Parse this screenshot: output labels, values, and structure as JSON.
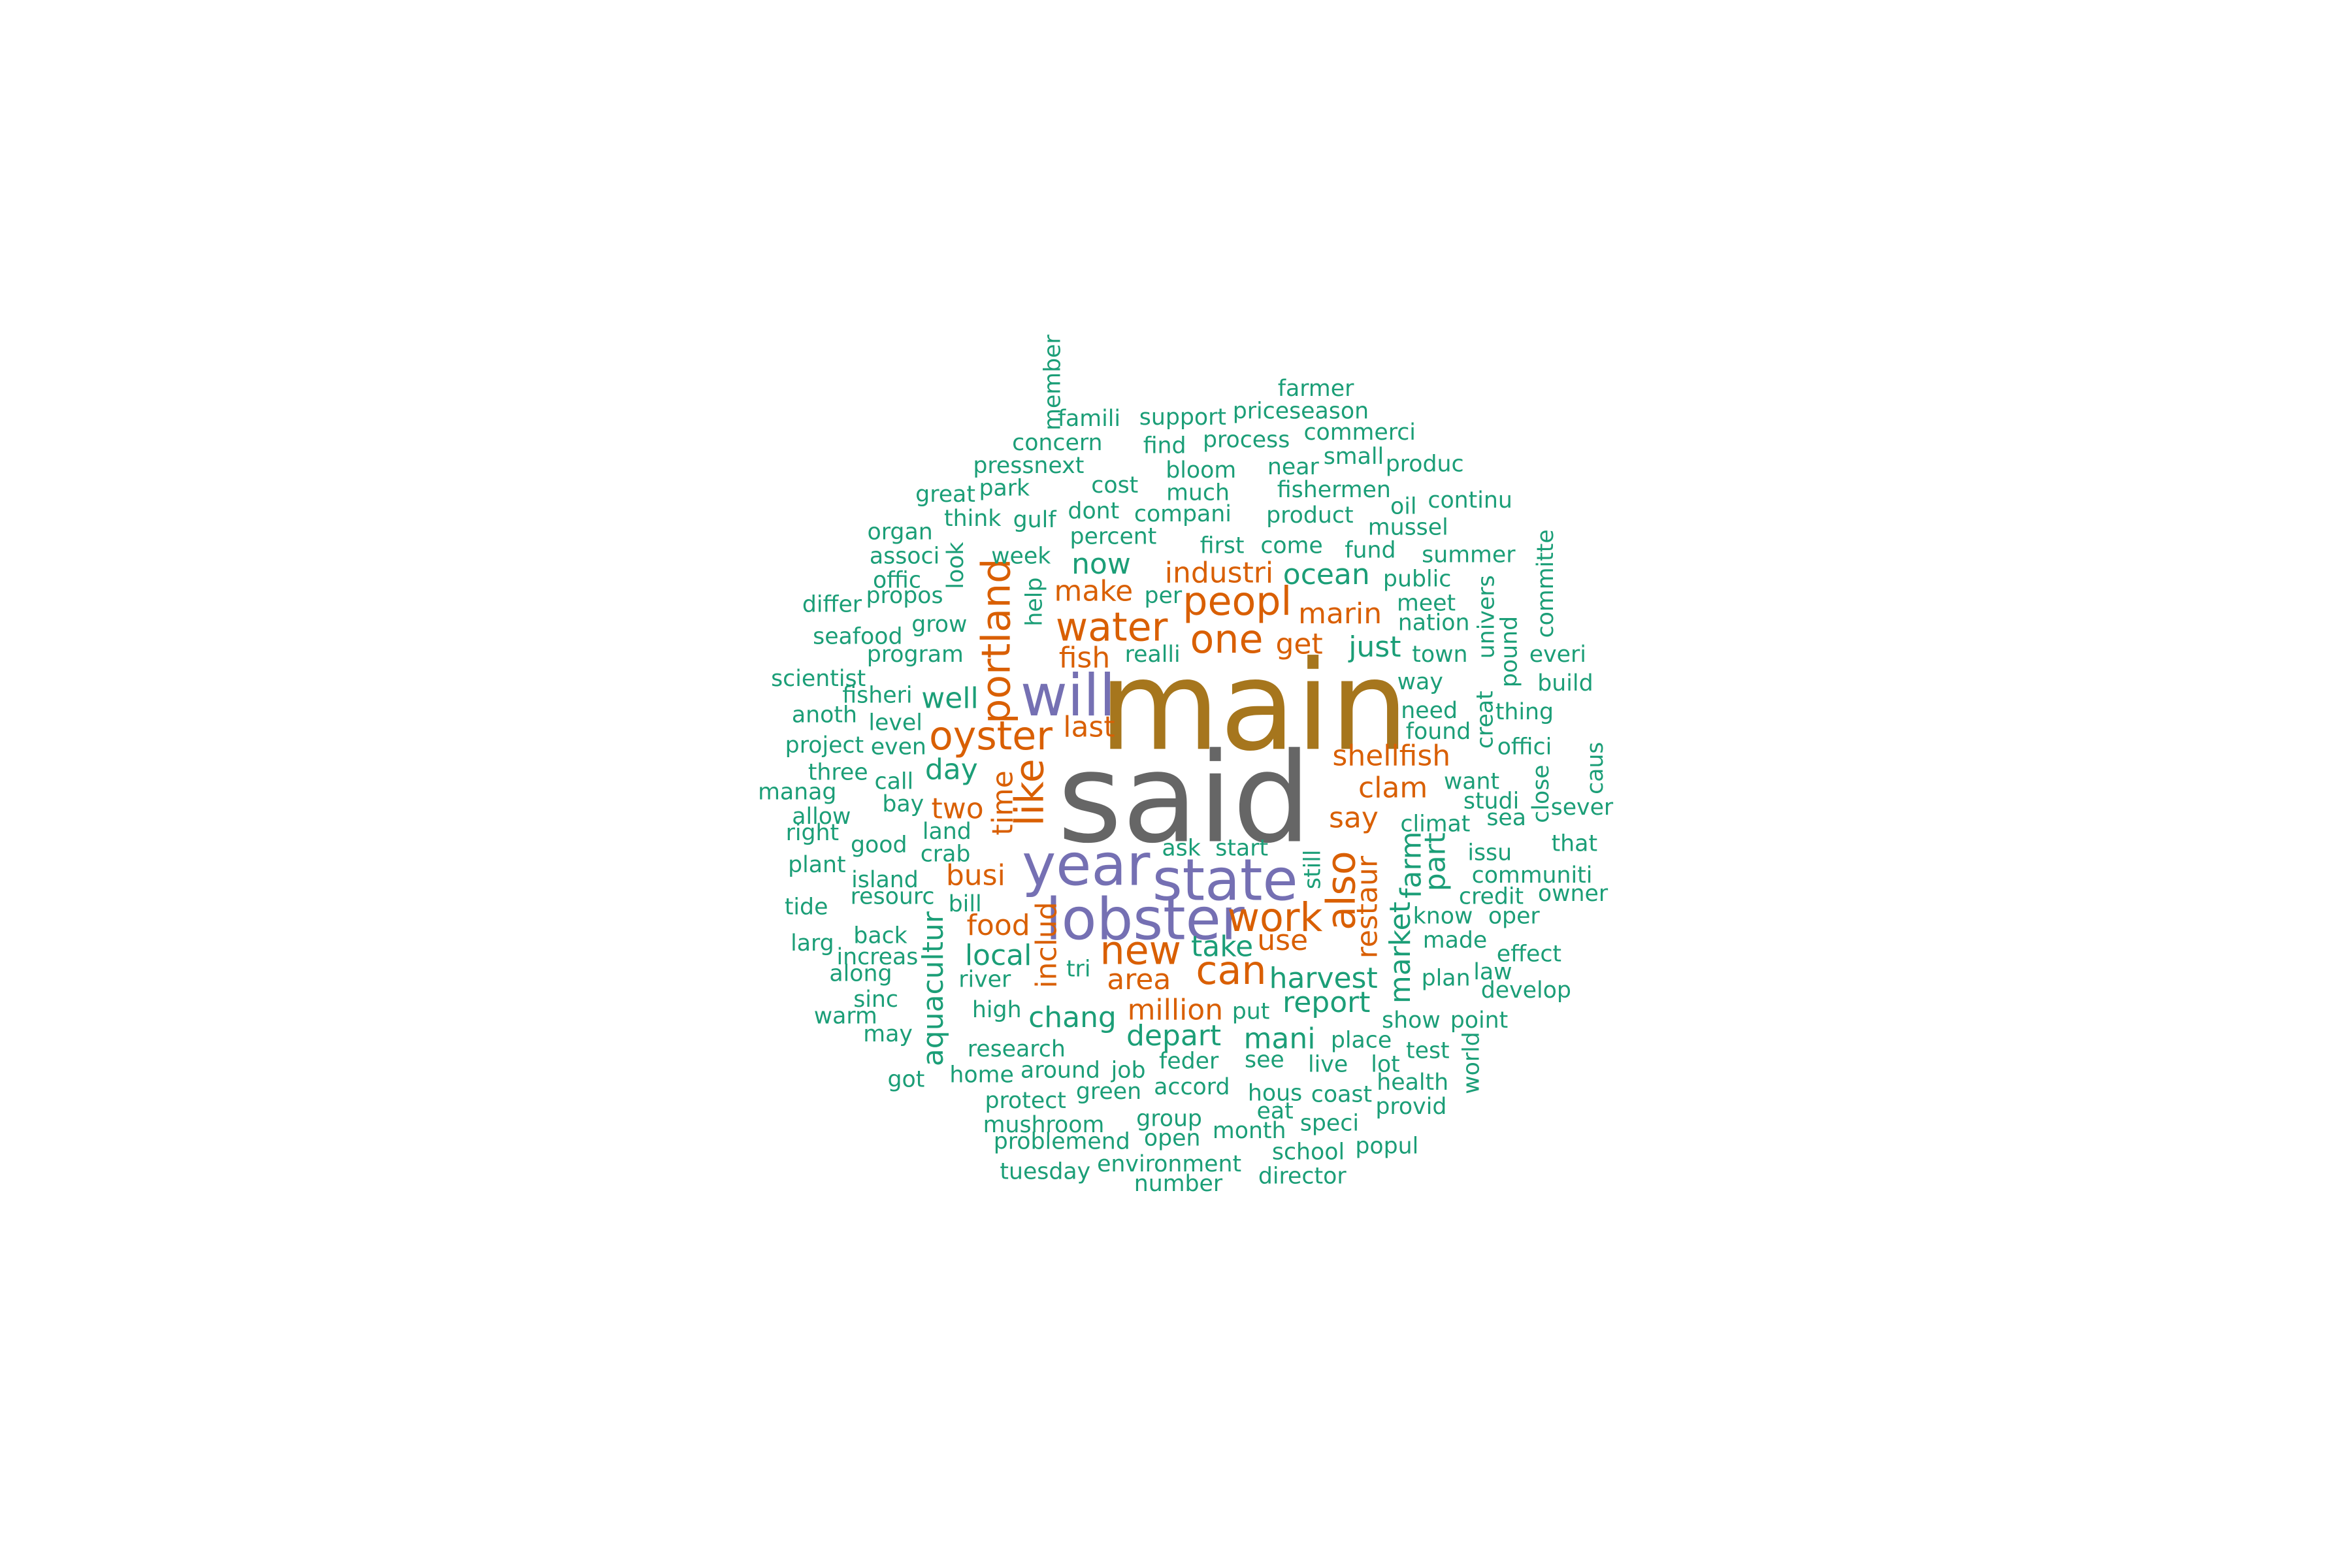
{
  "palette": {
    "teal": "#1b9e77",
    "orange": "#d95f02",
    "purple": "#7570b3",
    "gold": "#a6761d",
    "gray": "#666666"
  },
  "words": [
    {
      "text": "said",
      "tier": 1,
      "color": "gray",
      "rotate": false
    },
    {
      "text": "main",
      "tier": 1,
      "color": "gold",
      "rotate": false
    },
    {
      "text": "state",
      "tier": 2,
      "color": "purple",
      "rotate": false
    },
    {
      "text": "year",
      "tier": 2,
      "color": "purple",
      "rotate": false
    },
    {
      "text": "will",
      "tier": 2,
      "color": "purple",
      "rotate": false
    },
    {
      "text": "lobster",
      "tier": 2,
      "color": "purple",
      "rotate": false
    },
    {
      "text": "water",
      "tier": 3,
      "color": "orange",
      "rotate": false
    },
    {
      "text": "one",
      "tier": 3,
      "color": "orange",
      "rotate": false
    },
    {
      "text": "new",
      "tier": 3,
      "color": "orange",
      "rotate": false
    },
    {
      "text": "oyster",
      "tier": 3,
      "color": "orange",
      "rotate": false
    },
    {
      "text": "portland",
      "tier": 3,
      "color": "orange",
      "rotate": true
    },
    {
      "text": "peopl",
      "tier": 3,
      "color": "orange",
      "rotate": false
    },
    {
      "text": "can",
      "tier": 3,
      "color": "orange",
      "rotate": false
    },
    {
      "text": "work",
      "tier": 3,
      "color": "orange",
      "rotate": false
    },
    {
      "text": "like",
      "tier": 3,
      "color": "orange",
      "rotate": true
    },
    {
      "text": "also",
      "tier": 3,
      "color": "orange",
      "rotate": true
    },
    {
      "text": "industri",
      "tier": 4,
      "color": "orange",
      "rotate": false
    },
    {
      "text": "make",
      "tier": 4,
      "color": "orange",
      "rotate": false
    },
    {
      "text": "fish",
      "tier": 4,
      "color": "orange",
      "rotate": false
    },
    {
      "text": "get",
      "tier": 4,
      "color": "orange",
      "rotate": false
    },
    {
      "text": "shellfish",
      "tier": 4,
      "color": "orange",
      "rotate": false
    },
    {
      "text": "clam",
      "tier": 4,
      "color": "orange",
      "rotate": false
    },
    {
      "text": "say",
      "tier": 4,
      "color": "orange",
      "rotate": false
    },
    {
      "text": "time",
      "tier": 4,
      "color": "orange",
      "rotate": true
    },
    {
      "text": "two",
      "tier": 4,
      "color": "orange",
      "rotate": false
    },
    {
      "text": "busi",
      "tier": 4,
      "color": "orange",
      "rotate": false
    },
    {
      "text": "food",
      "tier": 4,
      "color": "orange",
      "rotate": false
    },
    {
      "text": "million",
      "tier": 4,
      "color": "orange",
      "rotate": false
    },
    {
      "text": "area",
      "tier": 4,
      "color": "orange",
      "rotate": false
    },
    {
      "text": "use",
      "tier": 4,
      "color": "orange",
      "rotate": false
    },
    {
      "text": "last",
      "tier": 4,
      "color": "orange",
      "rotate": false
    },
    {
      "text": "marin",
      "tier": 4,
      "color": "orange",
      "rotate": false
    },
    {
      "text": "restaur",
      "tier": 4,
      "color": "orange",
      "rotate": true
    },
    {
      "text": "includ",
      "tier": 4,
      "color": "orange",
      "rotate": true
    },
    {
      "text": "now",
      "tier": 4,
      "color": "teal",
      "rotate": false
    },
    {
      "text": "ocean",
      "tier": 4,
      "color": "teal",
      "rotate": false
    },
    {
      "text": "just",
      "tier": 4,
      "color": "teal",
      "rotate": false
    },
    {
      "text": "harvest",
      "tier": 4,
      "color": "teal",
      "rotate": false
    },
    {
      "text": "report",
      "tier": 4,
      "color": "teal",
      "rotate": false
    },
    {
      "text": "depart",
      "tier": 4,
      "color": "teal",
      "rotate": false
    },
    {
      "text": "chang",
      "tier": 4,
      "color": "teal",
      "rotate": false
    },
    {
      "text": "mani",
      "tier": 4,
      "color": "teal",
      "rotate": false
    },
    {
      "text": "day",
      "tier": 4,
      "color": "teal",
      "rotate": false
    },
    {
      "text": "well",
      "tier": 4,
      "color": "teal",
      "rotate": false
    },
    {
      "text": "local",
      "tier": 4,
      "color": "teal",
      "rotate": false
    },
    {
      "text": "take",
      "tier": 4,
      "color": "teal",
      "rotate": false
    },
    {
      "text": "market",
      "tier": 4,
      "color": "teal",
      "rotate": true
    },
    {
      "text": "farm",
      "tier": 4,
      "color": "teal",
      "rotate": true
    },
    {
      "text": "part",
      "tier": 4,
      "color": "teal",
      "rotate": true
    },
    {
      "text": "aquacultur",
      "tier": 4,
      "color": "teal",
      "rotate": true
    },
    {
      "text": "farmer",
      "tier": 5,
      "color": "teal",
      "rotate": false
    },
    {
      "text": "member",
      "tier": 5,
      "color": "teal",
      "rotate": true
    },
    {
      "text": "famili",
      "tier": 5,
      "color": "teal",
      "rotate": false
    },
    {
      "text": "support",
      "tier": 5,
      "color": "teal",
      "rotate": false
    },
    {
      "text": "priceseason",
      "tier": 5,
      "color": "teal",
      "rotate": false
    },
    {
      "text": "concern",
      "tier": 5,
      "color": "teal",
      "rotate": false
    },
    {
      "text": "find",
      "tier": 5,
      "color": "teal",
      "rotate": false
    },
    {
      "text": "process",
      "tier": 5,
      "color": "teal",
      "rotate": false
    },
    {
      "text": "commerci",
      "tier": 5,
      "color": "teal",
      "rotate": false
    },
    {
      "text": "pressnext",
      "tier": 5,
      "color": "teal",
      "rotate": false
    },
    {
      "text": "small",
      "tier": 5,
      "color": "teal",
      "rotate": false
    },
    {
      "text": "produc",
      "tier": 5,
      "color": "teal",
      "rotate": false
    },
    {
      "text": "bloom",
      "tier": 5,
      "color": "teal",
      "rotate": false
    },
    {
      "text": "near",
      "tier": 5,
      "color": "teal",
      "rotate": false
    },
    {
      "text": "great",
      "tier": 5,
      "color": "teal",
      "rotate": false
    },
    {
      "text": "park",
      "tier": 5,
      "color": "teal",
      "rotate": false
    },
    {
      "text": "cost",
      "tier": 5,
      "color": "teal",
      "rotate": false
    },
    {
      "text": "much",
      "tier": 5,
      "color": "teal",
      "rotate": false
    },
    {
      "text": "fishermen",
      "tier": 5,
      "color": "teal",
      "rotate": false
    },
    {
      "text": "oil",
      "tier": 5,
      "color": "teal",
      "rotate": false
    },
    {
      "text": "continu",
      "tier": 5,
      "color": "teal",
      "rotate": false
    },
    {
      "text": "think",
      "tier": 5,
      "color": "teal",
      "rotate": false
    },
    {
      "text": "gulf",
      "tier": 5,
      "color": "teal",
      "rotate": false
    },
    {
      "text": "dont",
      "tier": 5,
      "color": "teal",
      "rotate": false
    },
    {
      "text": "compani",
      "tier": 5,
      "color": "teal",
      "rotate": false
    },
    {
      "text": "product",
      "tier": 5,
      "color": "teal",
      "rotate": false
    },
    {
      "text": "mussel",
      "tier": 5,
      "color": "teal",
      "rotate": false
    },
    {
      "text": "organ",
      "tier": 5,
      "color": "teal",
      "rotate": false
    },
    {
      "text": "percent",
      "tier": 5,
      "color": "teal",
      "rotate": false
    },
    {
      "text": "first",
      "tier": 5,
      "color": "teal",
      "rotate": false
    },
    {
      "text": "come",
      "tier": 5,
      "color": "teal",
      "rotate": false
    },
    {
      "text": "fund",
      "tier": 5,
      "color": "teal",
      "rotate": false
    },
    {
      "text": "summer",
      "tier": 5,
      "color": "teal",
      "rotate": false
    },
    {
      "text": "committe",
      "tier": 5,
      "color": "teal",
      "rotate": true
    },
    {
      "text": "associ",
      "tier": 5,
      "color": "teal",
      "rotate": false
    },
    {
      "text": "look",
      "tier": 5,
      "color": "teal",
      "rotate": true
    },
    {
      "text": "week",
      "tier": 5,
      "color": "teal",
      "rotate": false
    },
    {
      "text": "public",
      "tier": 5,
      "color": "teal",
      "rotate": false
    },
    {
      "text": "offic",
      "tier": 5,
      "color": "teal",
      "rotate": false
    },
    {
      "text": "propos",
      "tier": 5,
      "color": "teal",
      "rotate": false
    },
    {
      "text": "differ",
      "tier": 5,
      "color": "teal",
      "rotate": false
    },
    {
      "text": "help",
      "tier": 5,
      "color": "teal",
      "rotate": true
    },
    {
      "text": "per",
      "tier": 5,
      "color": "teal",
      "rotate": false
    },
    {
      "text": "meet",
      "tier": 5,
      "color": "teal",
      "rotate": false
    },
    {
      "text": "nation",
      "tier": 5,
      "color": "teal",
      "rotate": false
    },
    {
      "text": "univers",
      "tier": 5,
      "color": "teal",
      "rotate": true
    },
    {
      "text": "pound",
      "tier": 5,
      "color": "teal",
      "rotate": true
    },
    {
      "text": "grow",
      "tier": 5,
      "color": "teal",
      "rotate": false
    },
    {
      "text": "seafood",
      "tier": 5,
      "color": "teal",
      "rotate": false
    },
    {
      "text": "program",
      "tier": 5,
      "color": "teal",
      "rotate": false
    },
    {
      "text": "realli",
      "tier": 5,
      "color": "teal",
      "rotate": false
    },
    {
      "text": "town",
      "tier": 5,
      "color": "teal",
      "rotate": false
    },
    {
      "text": "everi",
      "tier": 5,
      "color": "teal",
      "rotate": false
    },
    {
      "text": "scientist",
      "tier": 5,
      "color": "teal",
      "rotate": false
    },
    {
      "text": "fisheri",
      "tier": 5,
      "color": "teal",
      "rotate": false
    },
    {
      "text": "way",
      "tier": 5,
      "color": "teal",
      "rotate": false
    },
    {
      "text": "build",
      "tier": 5,
      "color": "teal",
      "rotate": false
    },
    {
      "text": "anoth",
      "tier": 5,
      "color": "teal",
      "rotate": false
    },
    {
      "text": "level",
      "tier": 5,
      "color": "teal",
      "rotate": false
    },
    {
      "text": "need",
      "tier": 5,
      "color": "teal",
      "rotate": false
    },
    {
      "text": "thing",
      "tier": 5,
      "color": "teal",
      "rotate": false
    },
    {
      "text": "creat",
      "tier": 5,
      "color": "teal",
      "rotate": true
    },
    {
      "text": "project",
      "tier": 5,
      "color": "teal",
      "rotate": false
    },
    {
      "text": "even",
      "tier": 5,
      "color": "teal",
      "rotate": false
    },
    {
      "text": "found",
      "tier": 5,
      "color": "teal",
      "rotate": false
    },
    {
      "text": "offici",
      "tier": 5,
      "color": "teal",
      "rotate": false
    },
    {
      "text": "three",
      "tier": 5,
      "color": "teal",
      "rotate": false
    },
    {
      "text": "call",
      "tier": 5,
      "color": "teal",
      "rotate": false
    },
    {
      "text": "want",
      "tier": 5,
      "color": "teal",
      "rotate": false
    },
    {
      "text": "caus",
      "tier": 5,
      "color": "teal",
      "rotate": true
    },
    {
      "text": "manag",
      "tier": 5,
      "color": "teal",
      "rotate": false
    },
    {
      "text": "bay",
      "tier": 5,
      "color": "teal",
      "rotate": false
    },
    {
      "text": "studi",
      "tier": 5,
      "color": "teal",
      "rotate": false
    },
    {
      "text": "sever",
      "tier": 5,
      "color": "teal",
      "rotate": false
    },
    {
      "text": "close",
      "tier": 5,
      "color": "teal",
      "rotate": true
    },
    {
      "text": "allow",
      "tier": 5,
      "color": "teal",
      "rotate": false
    },
    {
      "text": "sea",
      "tier": 5,
      "color": "teal",
      "rotate": false
    },
    {
      "text": "climat",
      "tier": 5,
      "color": "teal",
      "rotate": false
    },
    {
      "text": "right",
      "tier": 5,
      "color": "teal",
      "rotate": false
    },
    {
      "text": "land",
      "tier": 5,
      "color": "teal",
      "rotate": false
    },
    {
      "text": "good",
      "tier": 5,
      "color": "teal",
      "rotate": false
    },
    {
      "text": "crab",
      "tier": 5,
      "color": "teal",
      "rotate": false
    },
    {
      "text": "ask",
      "tier": 5,
      "color": "teal",
      "rotate": false
    },
    {
      "text": "start",
      "tier": 5,
      "color": "teal",
      "rotate": false
    },
    {
      "text": "that",
      "tier": 5,
      "color": "teal",
      "rotate": false
    },
    {
      "text": "issu",
      "tier": 5,
      "color": "teal",
      "rotate": false
    },
    {
      "text": "plant",
      "tier": 5,
      "color": "teal",
      "rotate": false
    },
    {
      "text": "still",
      "tier": 5,
      "color": "teal",
      "rotate": true
    },
    {
      "text": "communiti",
      "tier": 5,
      "color": "teal",
      "rotate": false
    },
    {
      "text": "island",
      "tier": 5,
      "color": "teal",
      "rotate": false
    },
    {
      "text": "owner",
      "tier": 5,
      "color": "teal",
      "rotate": false
    },
    {
      "text": "resourc",
      "tier": 5,
      "color": "teal",
      "rotate": false
    },
    {
      "text": "credit",
      "tier": 5,
      "color": "teal",
      "rotate": false
    },
    {
      "text": "tide",
      "tier": 5,
      "color": "teal",
      "rotate": false
    },
    {
      "text": "bill",
      "tier": 5,
      "color": "teal",
      "rotate": false
    },
    {
      "text": "know",
      "tier": 5,
      "color": "teal",
      "rotate": false
    },
    {
      "text": "oper",
      "tier": 5,
      "color": "teal",
      "rotate": false
    },
    {
      "text": "back",
      "tier": 5,
      "color": "teal",
      "rotate": false
    },
    {
      "text": "larg",
      "tier": 5,
      "color": "teal",
      "rotate": false
    },
    {
      "text": "made",
      "tier": 5,
      "color": "teal",
      "rotate": false
    },
    {
      "text": "effect",
      "tier": 5,
      "color": "teal",
      "rotate": false
    },
    {
      "text": "increas",
      "tier": 5,
      "color": "teal",
      "rotate": false
    },
    {
      "text": "tri",
      "tier": 5,
      "color": "teal",
      "rotate": false
    },
    {
      "text": "along",
      "tier": 5,
      "color": "teal",
      "rotate": false
    },
    {
      "text": "river",
      "tier": 5,
      "color": "teal",
      "rotate": false
    },
    {
      "text": "plan",
      "tier": 5,
      "color": "teal",
      "rotate": false
    },
    {
      "text": "law",
      "tier": 5,
      "color": "teal",
      "rotate": false
    },
    {
      "text": "develop",
      "tier": 5,
      "color": "teal",
      "rotate": false
    },
    {
      "text": "sinc",
      "tier": 5,
      "color": "teal",
      "rotate": false
    },
    {
      "text": "high",
      "tier": 5,
      "color": "teal",
      "rotate": false
    },
    {
      "text": "put",
      "tier": 5,
      "color": "teal",
      "rotate": false
    },
    {
      "text": "warm",
      "tier": 5,
      "color": "teal",
      "rotate": false
    },
    {
      "text": "show",
      "tier": 5,
      "color": "teal",
      "rotate": false
    },
    {
      "text": "point",
      "tier": 5,
      "color": "teal",
      "rotate": false
    },
    {
      "text": "may",
      "tier": 5,
      "color": "teal",
      "rotate": false
    },
    {
      "text": "place",
      "tier": 5,
      "color": "teal",
      "rotate": false
    },
    {
      "text": "research",
      "tier": 5,
      "color": "teal",
      "rotate": false
    },
    {
      "text": "test",
      "tier": 5,
      "color": "teal",
      "rotate": false
    },
    {
      "text": "feder",
      "tier": 5,
      "color": "teal",
      "rotate": false
    },
    {
      "text": "see",
      "tier": 5,
      "color": "teal",
      "rotate": false
    },
    {
      "text": "live",
      "tier": 5,
      "color": "teal",
      "rotate": false
    },
    {
      "text": "lot",
      "tier": 5,
      "color": "teal",
      "rotate": false
    },
    {
      "text": "world",
      "tier": 5,
      "color": "teal",
      "rotate": true
    },
    {
      "text": "home",
      "tier": 5,
      "color": "teal",
      "rotate": false
    },
    {
      "text": "around",
      "tier": 5,
      "color": "teal",
      "rotate": false
    },
    {
      "text": "job",
      "tier": 5,
      "color": "teal",
      "rotate": false
    },
    {
      "text": "got",
      "tier": 5,
      "color": "teal",
      "rotate": false
    },
    {
      "text": "health",
      "tier": 5,
      "color": "teal",
      "rotate": false
    },
    {
      "text": "green",
      "tier": 5,
      "color": "teal",
      "rotate": false
    },
    {
      "text": "accord",
      "tier": 5,
      "color": "teal",
      "rotate": false
    },
    {
      "text": "hous",
      "tier": 5,
      "color": "teal",
      "rotate": false
    },
    {
      "text": "coast",
      "tier": 5,
      "color": "teal",
      "rotate": false
    },
    {
      "text": "protect",
      "tier": 5,
      "color": "teal",
      "rotate": false
    },
    {
      "text": "provid",
      "tier": 5,
      "color": "teal",
      "rotate": false
    },
    {
      "text": "eat",
      "tier": 5,
      "color": "teal",
      "rotate": false
    },
    {
      "text": "group",
      "tier": 5,
      "color": "teal",
      "rotate": false
    },
    {
      "text": "speci",
      "tier": 5,
      "color": "teal",
      "rotate": false
    },
    {
      "text": "mushroom",
      "tier": 5,
      "color": "teal",
      "rotate": false
    },
    {
      "text": "month",
      "tier": 5,
      "color": "teal",
      "rotate": false
    },
    {
      "text": "open",
      "tier": 5,
      "color": "teal",
      "rotate": false
    },
    {
      "text": "problemend",
      "tier": 5,
      "color": "teal",
      "rotate": false
    },
    {
      "text": "popul",
      "tier": 5,
      "color": "teal",
      "rotate": false
    },
    {
      "text": "school",
      "tier": 5,
      "color": "teal",
      "rotate": false
    },
    {
      "text": "environment",
      "tier": 5,
      "color": "teal",
      "rotate": false
    },
    {
      "text": "tuesday",
      "tier": 5,
      "color": "teal",
      "rotate": false
    },
    {
      "text": "director",
      "tier": 5,
      "color": "teal",
      "rotate": false
    },
    {
      "text": "number",
      "tier": 5,
      "color": "teal",
      "rotate": false
    }
  ]
}
